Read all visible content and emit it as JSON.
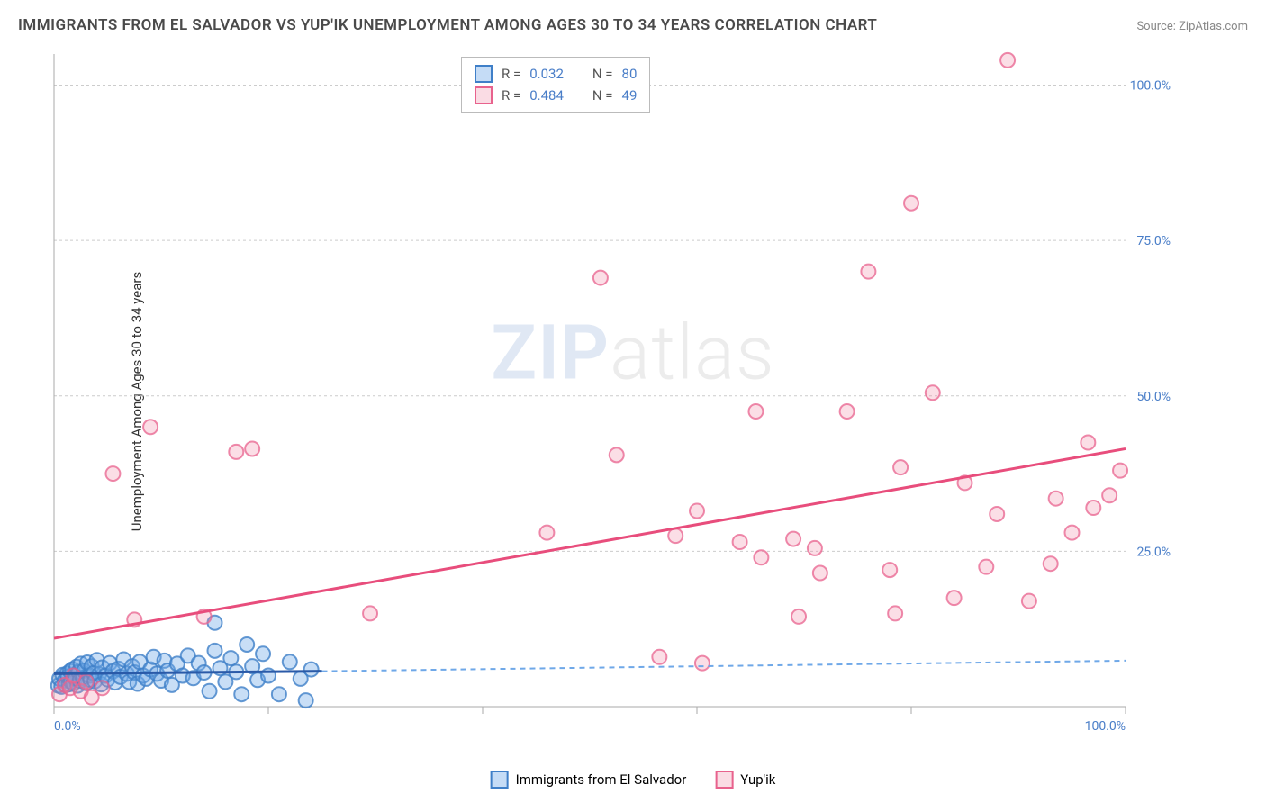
{
  "chart": {
    "type": "scatter",
    "title": "IMMIGRANTS FROM EL SALVADOR VS YUP'IK UNEMPLOYMENT AMONG AGES 30 TO 34 YEARS CORRELATION CHART",
    "source_label": "Source:",
    "source_name": "ZipAtlas.com",
    "ylabel": "Unemployment Among Ages 30 to 34 years",
    "watermark_zip": "ZIP",
    "watermark_atlas": "atlas",
    "xlim": [
      0,
      100
    ],
    "ylim": [
      0,
      105
    ],
    "x_ticks": [
      0,
      20,
      40,
      60,
      80,
      100
    ],
    "x_tick_labels": [
      "0.0%",
      "",
      "",
      "",
      "",
      "100.0%"
    ],
    "y_ticks": [
      25,
      50,
      75,
      100
    ],
    "y_tick_labels": [
      "25.0%",
      "50.0%",
      "75.0%",
      "100.0%"
    ],
    "grid_color": "#cccccc",
    "axis_color": "#aaaaaa",
    "ticklabel_color": "#4a7ec8",
    "background_color": "#ffffff",
    "title_fontsize": 17,
    "label_fontsize": 15,
    "ticklabel_fontsize": 14,
    "marker_radius": 8,
    "series": [
      {
        "name": "Immigrants from El Salvador",
        "key": "blue",
        "fill": "#6fa8e8",
        "fill_opacity": 0.38,
        "stroke": "#3f7fc8",
        "R": "0.032",
        "N": "80",
        "trend": {
          "x1": 0,
          "y1": 5.3,
          "x2": 25,
          "y2": 5.7,
          "extrap_x2": 100,
          "extrap_y2": 7.4,
          "width": 3,
          "color": "#2a5aa8",
          "dash_color": "#6fa8e8"
        },
        "points": [
          [
            0.4,
            3.4
          ],
          [
            0.5,
            4.5
          ],
          [
            0.7,
            3.2
          ],
          [
            0.8,
            5.1
          ],
          [
            1.0,
            4.2
          ],
          [
            1.1,
            3.5
          ],
          [
            1.2,
            5.3
          ],
          [
            1.3,
            4.8
          ],
          [
            1.4,
            3.6
          ],
          [
            1.5,
            5.7
          ],
          [
            1.6,
            4.0
          ],
          [
            1.7,
            6.0
          ],
          [
            1.8,
            3.8
          ],
          [
            1.9,
            5.0
          ],
          [
            2.0,
            4.5
          ],
          [
            2.1,
            6.4
          ],
          [
            2.2,
            3.4
          ],
          [
            2.3,
            5.6
          ],
          [
            2.4,
            4.2
          ],
          [
            2.5,
            6.9
          ],
          [
            2.7,
            4.6
          ],
          [
            2.8,
            5.8
          ],
          [
            3.0,
            3.8
          ],
          [
            3.1,
            7.1
          ],
          [
            3.3,
            5.0
          ],
          [
            3.4,
            4.3
          ],
          [
            3.5,
            6.5
          ],
          [
            3.7,
            5.4
          ],
          [
            3.8,
            4.1
          ],
          [
            4.0,
            7.5
          ],
          [
            4.2,
            5.2
          ],
          [
            4.4,
            3.6
          ],
          [
            4.5,
            6.3
          ],
          [
            4.8,
            5.0
          ],
          [
            5.0,
            4.4
          ],
          [
            5.2,
            7.0
          ],
          [
            5.5,
            5.7
          ],
          [
            5.7,
            3.9
          ],
          [
            6.0,
            6.1
          ],
          [
            6.2,
            4.8
          ],
          [
            6.5,
            7.6
          ],
          [
            6.8,
            5.3
          ],
          [
            7.0,
            4.0
          ],
          [
            7.3,
            6.5
          ],
          [
            7.5,
            5.5
          ],
          [
            7.8,
            3.7
          ],
          [
            8.0,
            7.2
          ],
          [
            8.3,
            5.0
          ],
          [
            8.6,
            4.5
          ],
          [
            9.0,
            6.0
          ],
          [
            9.3,
            8.0
          ],
          [
            9.6,
            5.3
          ],
          [
            10.0,
            4.2
          ],
          [
            10.3,
            7.4
          ],
          [
            10.6,
            5.8
          ],
          [
            11.0,
            3.5
          ],
          [
            11.5,
            6.9
          ],
          [
            12.0,
            5.0
          ],
          [
            12.5,
            8.2
          ],
          [
            13.0,
            4.6
          ],
          [
            13.5,
            7.0
          ],
          [
            14.0,
            5.5
          ],
          [
            14.5,
            2.5
          ],
          [
            15.0,
            9.0
          ],
          [
            15.0,
            13.5
          ],
          [
            15.5,
            6.2
          ],
          [
            16.0,
            4.0
          ],
          [
            16.5,
            7.8
          ],
          [
            17.0,
            5.6
          ],
          [
            17.5,
            2.0
          ],
          [
            18.0,
            10.0
          ],
          [
            18.5,
            6.5
          ],
          [
            19.0,
            4.3
          ],
          [
            19.5,
            8.5
          ],
          [
            20.0,
            5.0
          ],
          [
            21.0,
            2.0
          ],
          [
            22.0,
            7.2
          ],
          [
            23.0,
            4.5
          ],
          [
            23.5,
            1.0
          ],
          [
            24.0,
            6.0
          ]
        ]
      },
      {
        "name": "Yup'ik",
        "key": "pink",
        "fill": "#f08aa5",
        "fill_opacity": 0.28,
        "stroke": "#e8628d",
        "R": "0.484",
        "N": "49",
        "trend": {
          "x1": 0,
          "y1": 11.0,
          "x2": 100,
          "y2": 41.5,
          "width": 3,
          "color": "#e84d7c"
        },
        "points": [
          [
            0.5,
            2.0
          ],
          [
            1.0,
            3.5
          ],
          [
            1.5,
            3.0
          ],
          [
            1.8,
            5.0
          ],
          [
            2.5,
            2.5
          ],
          [
            3.0,
            4.0
          ],
          [
            3.5,
            1.5
          ],
          [
            4.5,
            3.0
          ],
          [
            5.5,
            37.5
          ],
          [
            7.5,
            14.0
          ],
          [
            9.0,
            45.0
          ],
          [
            14.0,
            14.5
          ],
          [
            17.0,
            41.0
          ],
          [
            18.5,
            41.5
          ],
          [
            29.5,
            15.0
          ],
          [
            46.0,
            28.0
          ],
          [
            51.0,
            69.0
          ],
          [
            52.5,
            40.5
          ],
          [
            56.5,
            8.0
          ],
          [
            58.0,
            27.5
          ],
          [
            60.0,
            31.5
          ],
          [
            60.5,
            7.0
          ],
          [
            64.0,
            26.5
          ],
          [
            65.5,
            47.5
          ],
          [
            66.0,
            24.0
          ],
          [
            69.0,
            27.0
          ],
          [
            69.5,
            14.5
          ],
          [
            71.0,
            25.5
          ],
          [
            71.5,
            21.5
          ],
          [
            74.0,
            47.5
          ],
          [
            76.0,
            70.0
          ],
          [
            78.0,
            22.0
          ],
          [
            78.5,
            15.0
          ],
          [
            79.0,
            38.5
          ],
          [
            80.0,
            81.0
          ],
          [
            82.0,
            50.5
          ],
          [
            84.0,
            17.5
          ],
          [
            85.0,
            36.0
          ],
          [
            87.0,
            22.5
          ],
          [
            88.0,
            31.0
          ],
          [
            89.0,
            104.0
          ],
          [
            91.0,
            17.0
          ],
          [
            93.0,
            23.0
          ],
          [
            93.5,
            33.5
          ],
          [
            95.0,
            28.0
          ],
          [
            96.5,
            42.5
          ],
          [
            97.0,
            32.0
          ],
          [
            98.5,
            34.0
          ],
          [
            99.5,
            38.0
          ]
        ]
      }
    ],
    "legend_top": {
      "rows": [
        {
          "swatch": "blue",
          "r_label": "R =",
          "r_val": "0.032",
          "n_label": "N =",
          "n_val": "80"
        },
        {
          "swatch": "pink",
          "r_label": "R =",
          "r_val": "0.484",
          "n_label": "N =",
          "n_val": "49"
        }
      ]
    },
    "legend_bottom": [
      {
        "swatch": "blue",
        "label": "Immigrants from El Salvador"
      },
      {
        "swatch": "pink",
        "label": "Yup'ik"
      }
    ]
  }
}
